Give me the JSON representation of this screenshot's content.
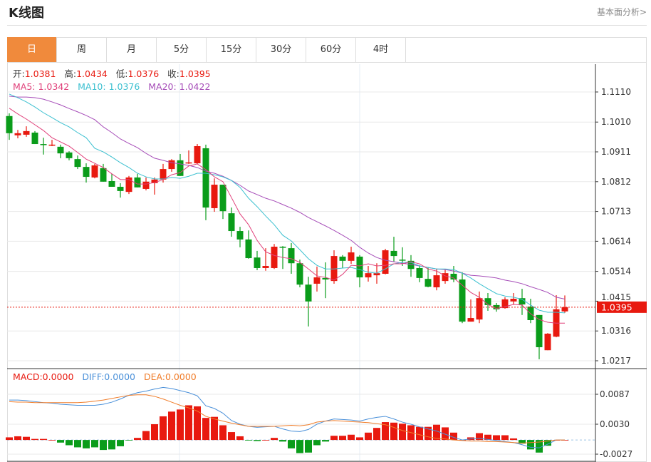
{
  "header": {
    "title": "K线图",
    "fundamental_link": "基本面分析>"
  },
  "tabs": [
    {
      "label": "日",
      "active": true
    },
    {
      "label": "周"
    },
    {
      "label": "月"
    },
    {
      "label": "5分"
    },
    {
      "label": "15分"
    },
    {
      "label": "30分"
    },
    {
      "label": "60分"
    },
    {
      "label": "4时"
    }
  ],
  "ohlc": {
    "open_label": "开:",
    "open": "1.0381",
    "high_label": "高:",
    "high": "1.0434",
    "low_label": "低:",
    "low": "1.0376",
    "close_label": "收:",
    "close": "1.0395"
  },
  "ma_legend": {
    "ma5": "MA5: 1.0342",
    "ma10": "MA10: 1.0376",
    "ma20": "MA20: 1.0422"
  },
  "macd_legend": {
    "macd": "MACD:0.0000",
    "diff": "DIFF:0.0000",
    "dea": "DEA:0.0000"
  },
  "colors": {
    "up": "#e8190f",
    "down": "#0a9c1a",
    "ma5": "#e0407a",
    "ma10": "#3cc0d0",
    "ma20": "#a64db8",
    "diff": "#4a90d9",
    "dea": "#f07d2a",
    "active_tab": "#f08a3c"
  },
  "chart_data": [
    {
      "type": "candlestick",
      "price_ticks": [
        "1.1110",
        "1.1010",
        "1.0911",
        "1.0812",
        "1.0713",
        "1.0614",
        "1.0514",
        "1.0415",
        "1.0316",
        "1.0217"
      ],
      "ylim": [
        1.0217,
        1.111
      ],
      "current_price": "1.0395",
      "grid": true,
      "candles": [
        [
          1.103,
          1.1039,
          1.0951,
          1.0973
        ],
        [
          1.0966,
          1.0984,
          1.0956,
          1.0973
        ],
        [
          1.0968,
          1.0996,
          1.0961,
          1.098
        ],
        [
          1.0975,
          1.098,
          1.0937,
          1.0937
        ],
        [
          1.0937,
          1.0958,
          1.0902,
          1.0935
        ],
        [
          1.0932,
          1.0951,
          1.093,
          1.0935
        ],
        [
          1.0928,
          1.0935,
          1.089,
          1.0906
        ],
        [
          1.0909,
          1.0913,
          1.0883,
          1.089
        ],
        [
          1.0887,
          1.0899,
          1.0854,
          1.0861
        ],
        [
          1.0861,
          1.0873,
          1.0809,
          1.0828
        ],
        [
          1.0826,
          1.0871,
          1.0823,
          1.0866
        ],
        [
          1.0857,
          1.0871,
          1.0812,
          1.0812
        ],
        [
          1.0814,
          1.0838,
          1.0795,
          1.0795
        ],
        [
          1.0795,
          1.0807,
          1.0759,
          1.0781
        ],
        [
          1.0778,
          1.0831,
          1.0771,
          1.0826
        ],
        [
          1.0826,
          1.0838,
          1.0793,
          1.0793
        ],
        [
          1.0788,
          1.0826,
          1.0783,
          1.0812
        ],
        [
          1.0807,
          1.0826,
          1.0769,
          1.0819
        ],
        [
          1.0819,
          1.0871,
          1.0809,
          1.0854
        ],
        [
          1.0854,
          1.0887,
          1.0845,
          1.0883
        ],
        [
          1.0883,
          1.0904,
          1.0831,
          1.0831
        ],
        [
          1.0873,
          1.0916,
          1.0871,
          1.0876
        ],
        [
          1.0873,
          1.0937,
          1.0871,
          1.093
        ],
        [
          1.0923,
          1.0935,
          1.0684,
          1.0726
        ],
        [
          1.0724,
          1.0823,
          1.0712,
          1.0802
        ],
        [
          1.0802,
          1.0802,
          1.0688,
          1.0714
        ],
        [
          1.0707,
          1.0726,
          1.0629,
          1.0648
        ],
        [
          1.0648,
          1.0662,
          1.0594,
          1.062
        ],
        [
          1.062,
          1.065,
          1.0556,
          1.0558
        ],
        [
          1.056,
          1.0582,
          1.0518,
          1.0525
        ],
        [
          1.0525,
          1.0591,
          1.0516,
          1.0532
        ],
        [
          1.0525,
          1.0605,
          1.0522,
          1.0596
        ],
        [
          1.0596,
          1.0598,
          1.0522,
          1.0594
        ],
        [
          1.0591,
          1.0608,
          1.0506,
          1.0541
        ],
        [
          1.0541,
          1.0553,
          1.0461,
          1.047
        ],
        [
          1.047,
          1.0496,
          1.0331,
          1.0414
        ],
        [
          1.0473,
          1.053,
          1.0447,
          1.0494
        ],
        [
          1.0492,
          1.0544,
          1.0425,
          1.0487
        ],
        [
          1.0482,
          1.0584,
          1.0473,
          1.0565
        ],
        [
          1.0563,
          1.0568,
          1.0525,
          1.0549
        ],
        [
          1.0549,
          1.0596,
          1.0539,
          1.0577
        ],
        [
          1.0563,
          1.0568,
          1.0461,
          1.0494
        ],
        [
          1.0494,
          1.0532,
          1.048,
          1.0508
        ],
        [
          1.0501,
          1.0541,
          1.0473,
          1.0508
        ],
        [
          1.0506,
          1.0589,
          1.0504,
          1.0584
        ],
        [
          1.0582,
          1.0629,
          1.0546,
          1.0565
        ],
        [
          1.0553,
          1.0594,
          1.0532,
          1.0551
        ],
        [
          1.0549,
          1.0568,
          1.0496,
          1.0522
        ],
        [
          1.0525,
          1.0534,
          1.0478,
          1.0492
        ],
        [
          1.0489,
          1.0527,
          1.0461,
          1.0463
        ],
        [
          1.0461,
          1.0522,
          1.0451,
          1.0501
        ],
        [
          1.0482,
          1.052,
          1.0473,
          1.0508
        ],
        [
          1.0506,
          1.0532,
          1.0478,
          1.0487
        ],
        [
          1.0487,
          1.0511,
          1.0342,
          1.0347
        ],
        [
          1.0347,
          1.0421,
          1.0347,
          1.0359
        ],
        [
          1.0354,
          1.0447,
          1.0342,
          1.0425
        ],
        [
          1.0425,
          1.0442,
          1.0383,
          1.0402
        ],
        [
          1.0402,
          1.0409,
          1.038,
          1.0388
        ],
        [
          1.0392,
          1.0428,
          1.039,
          1.0421
        ],
        [
          1.0414,
          1.0442,
          1.0404,
          1.0423
        ],
        [
          1.0425,
          1.0456,
          1.0369,
          1.0404
        ],
        [
          1.0397,
          1.0423,
          1.0342,
          1.0352
        ],
        [
          1.0369,
          1.0369,
          1.0222,
          1.0262
        ],
        [
          1.0252,
          1.0309,
          1.0252,
          1.0307
        ],
        [
          1.0297,
          1.0435,
          1.0295,
          1.0388
        ],
        [
          1.0381,
          1.0434,
          1.0376,
          1.0395
        ]
      ],
      "ma5": [
        1.1056,
        1.1037,
        1.102,
        1.1001,
        1.0982,
        1.0958,
        1.0944,
        1.093,
        1.0909,
        1.0887,
        1.0873,
        1.0859,
        1.0838,
        1.0819,
        1.0819,
        1.0804,
        1.0804,
        1.0809,
        1.0819,
        1.0835,
        1.0842,
        1.0864,
        1.0871,
        1.0852,
        1.0828,
        1.0812,
        1.0759,
        1.0705,
        1.0669,
        1.0617,
        1.0579,
        1.0567,
        1.056,
        1.0556,
        1.0544,
        1.0522,
        1.0499,
        1.0494,
        1.0485,
        1.0504,
        1.0534,
        1.0532,
        1.0539,
        1.0532,
        1.0534,
        1.0539,
        1.0539,
        1.0546,
        1.0539,
        1.0522,
        1.0515,
        1.0499,
        1.0492,
        1.0468,
        1.0444,
        1.0428,
        1.0404,
        1.039,
        1.0397,
        1.0404,
        1.0402,
        1.0373,
        1.0354,
        1.0345,
        1.0342,
        1.0342
      ],
      "ma10": [
        1.1103,
        1.1091,
        1.1077,
        1.106,
        1.1041,
        1.1025,
        1.1008,
        1.0994,
        1.0975,
        1.0958,
        1.0923,
        1.0911,
        1.0894,
        1.0875,
        1.0859,
        1.084,
        1.0828,
        1.0821,
        1.0821,
        1.0826,
        1.0823,
        1.083,
        1.084,
        1.084,
        1.0835,
        1.0828,
        1.0816,
        1.0793,
        1.0757,
        1.0729,
        1.0698,
        1.0669,
        1.0634,
        1.0615,
        1.0586,
        1.0556,
        1.0534,
        1.0522,
        1.0522,
        1.0525,
        1.0527,
        1.052,
        1.0511,
        1.0508,
        1.0522,
        1.0539,
        1.0544,
        1.0544,
        1.0532,
        1.0527,
        1.0522,
        1.0522,
        1.052,
        1.0508,
        1.0492,
        1.0473,
        1.0456,
        1.044,
        1.0432,
        1.0428,
        1.0421,
        1.0402,
        1.0385,
        1.0378,
        1.0378,
        1.0376
      ],
      "ma20": [
        1.1096,
        1.1093,
        1.1093,
        1.1091,
        1.1086,
        1.1077,
        1.1067,
        1.1055,
        1.1044,
        1.1032,
        1.1018,
        1.0994,
        1.0975,
        1.0954,
        1.0939,
        1.0925,
        1.0906,
        1.089,
        1.0883,
        1.0875,
        1.0871,
        1.0866,
        1.0859,
        1.0847,
        1.084,
        1.083,
        1.0816,
        1.08,
        1.0781,
        1.0769,
        1.0757,
        1.0748,
        1.0736,
        1.0724,
        1.071,
        1.0693,
        1.0679,
        1.0665,
        1.065,
        1.0634,
        1.0617,
        1.0594,
        1.0575,
        1.056,
        1.0551,
        1.0546,
        1.0541,
        1.0537,
        1.0532,
        1.0527,
        1.0522,
        1.052,
        1.0515,
        1.0508,
        1.0501,
        1.0499,
        1.0496,
        1.0492,
        1.0485,
        1.048,
        1.0473,
        1.0463,
        1.0454,
        1.0444,
        1.0428,
        1.0422
      ]
    },
    {
      "type": "bar+line",
      "macd_ticks": [
        "0.0087",
        "0.0030",
        "-0.0027"
      ],
      "ylim": [
        -0.0027,
        0.0087
      ],
      "macd": [
        0.0005,
        0.0007,
        0.0006,
        0.0002,
        0.0002,
        0.0,
        -0.0005,
        -0.001,
        -0.0014,
        -0.0016,
        -0.0014,
        -0.0019,
        -0.0018,
        -0.0012,
        -0.0001,
        0.0004,
        0.0017,
        0.003,
        0.0045,
        0.0054,
        0.0058,
        0.0066,
        0.0064,
        0.0042,
        0.0044,
        0.0028,
        0.0015,
        0.0007,
        -0.0001,
        -0.0002,
        0.0,
        0.0004,
        -0.0003,
        -0.0016,
        -0.0025,
        -0.0024,
        -0.001,
        -0.0003,
        0.0008,
        0.0008,
        0.001,
        0.0005,
        0.0014,
        0.0023,
        0.0034,
        0.0033,
        0.0031,
        0.0028,
        0.0025,
        0.0025,
        0.0029,
        0.0024,
        0.0014,
        0.0,
        0.0005,
        0.0013,
        0.001,
        0.0009,
        0.0009,
        0.0003,
        -0.0007,
        -0.0018,
        -0.0024,
        -0.0011,
        0.0,
        0.0
      ],
      "diff": [
        0.0076,
        0.0076,
        0.0075,
        0.0073,
        0.0071,
        0.007,
        0.0068,
        0.0067,
        0.0066,
        0.0066,
        0.0066,
        0.0068,
        0.0072,
        0.0078,
        0.0085,
        0.009,
        0.0093,
        0.0097,
        0.01,
        0.0098,
        0.0094,
        0.009,
        0.0084,
        0.0065,
        0.006,
        0.0051,
        0.0037,
        0.003,
        0.0026,
        0.0024,
        0.0025,
        0.0026,
        0.0021,
        0.0017,
        0.0016,
        0.002,
        0.003,
        0.0036,
        0.004,
        0.0039,
        0.0038,
        0.0036,
        0.004,
        0.0043,
        0.0045,
        0.004,
        0.0034,
        0.003,
        0.0025,
        0.0021,
        0.0017,
        0.0011,
        0.0005,
        0.0,
        0.0002,
        0.0003,
        0.0001,
        -0.0001,
        -0.0003,
        -0.0005,
        -0.0009,
        -0.0014,
        -0.0015,
        -0.0008,
        0.0,
        0.0
      ],
      "dea": [
        0.0073,
        0.0072,
        0.0072,
        0.0071,
        0.0071,
        0.0071,
        0.0071,
        0.0071,
        0.0071,
        0.0072,
        0.0074,
        0.0076,
        0.0079,
        0.0082,
        0.0085,
        0.0086,
        0.0086,
        0.0083,
        0.0078,
        0.0072,
        0.0066,
        0.0061,
        0.0055,
        0.0045,
        0.004,
        0.0036,
        0.0032,
        0.0029,
        0.0026,
        0.0026,
        0.0026,
        0.0026,
        0.0027,
        0.0028,
        0.0027,
        0.0029,
        0.0034,
        0.0036,
        0.0037,
        0.0036,
        0.0035,
        0.0034,
        0.0033,
        0.0031,
        0.0029,
        0.0024,
        0.0018,
        0.0014,
        0.001,
        0.0006,
        0.0003,
        0.0002,
        0.0,
        -0.0001,
        -0.0002,
        -0.0002,
        -0.0003,
        -0.0003,
        -0.0004,
        -0.0005,
        -0.0006,
        -0.0005,
        -0.0004,
        -0.0002,
        0.0,
        0.0
      ]
    }
  ]
}
